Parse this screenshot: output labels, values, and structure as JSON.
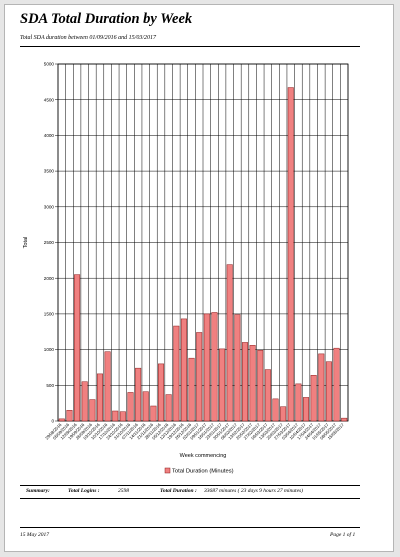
{
  "report": {
    "title": "SDA Total Duration by Week",
    "subtitle": "Total SDA duration between 01/09/2016 and 15/03/2017"
  },
  "summary": {
    "label": "Summary:",
    "logins_label": "Total Logins :",
    "logins_value": "2598",
    "duration_label": "Total Duration :",
    "duration_value": "33687 minutes ( 23 days 9 hours 27 minutes)"
  },
  "footer": {
    "date": "15 May 2017",
    "page": "Page 1 of 1"
  },
  "colors": {
    "bar_fill": "#f08080",
    "bar_stroke": "#8b1a1a"
  },
  "chart_data": {
    "type": "bar",
    "ylabel": "Total",
    "xlabel": "Week commencing",
    "ylim": [
      0,
      5000
    ],
    "yticks": [
      0,
      500,
      1000,
      1500,
      2000,
      2500,
      3000,
      3500,
      4000,
      4500,
      5000
    ],
    "grid": true,
    "legend_position": "bottom",
    "categories": [
      "29/08/2016",
      "05/09/2016",
      "12/09/2016",
      "19/09/2016",
      "26/09/2016",
      "03/10/2016",
      "10/10/2016",
      "17/10/2016",
      "24/10/2016",
      "31/10/2016",
      "07/11/2016",
      "14/11/2016",
      "21/11/2016",
      "28/11/2016",
      "05/12/2016",
      "12/12/2016",
      "19/12/2016",
      "26/12/2016",
      "02/01/2017",
      "09/01/2017",
      "16/01/2017",
      "23/01/2017",
      "30/01/2017",
      "06/02/2017",
      "13/02/2017",
      "20/02/2017",
      "27/02/2017",
      "06/03/2017",
      "13/03/2017",
      "20/03/2017",
      "27/03/2017",
      "03/04/2017",
      "10/04/2017",
      "17/04/2017",
      "24/04/2017",
      "01/05/2017",
      "08/05/2017",
      "15/05/2017"
    ],
    "series": [
      {
        "name": "Total Duration (Minutes)",
        "values": [
          30,
          150,
          2050,
          550,
          300,
          660,
          970,
          140,
          130,
          400,
          740,
          410,
          210,
          800,
          370,
          1330,
          1430,
          880,
          1240,
          1500,
          1520,
          1010,
          2190,
          1490,
          1100,
          1060,
          990,
          720,
          310,
          200,
          4670,
          520,
          330,
          640,
          940,
          830,
          1020,
          40
        ]
      }
    ]
  }
}
